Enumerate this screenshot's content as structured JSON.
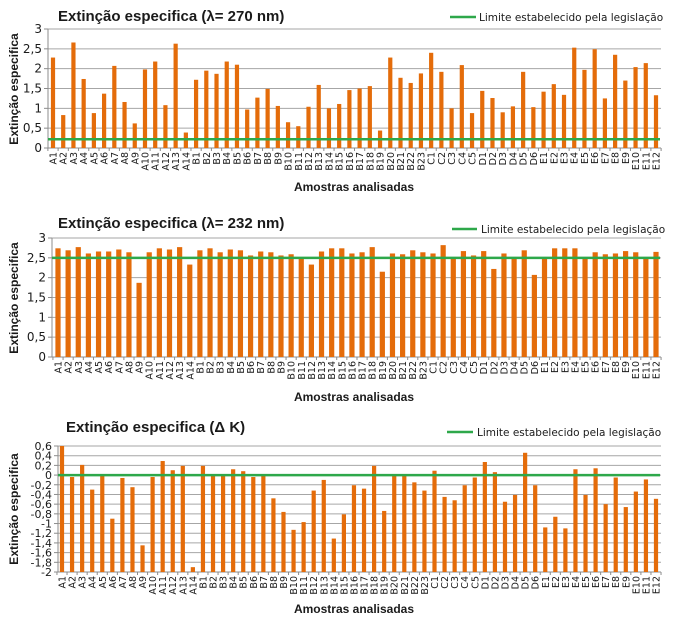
{
  "colors": {
    "bar": "#E46C0A",
    "limit_line": "#2EA84A",
    "grid": "#A6A6A6",
    "axis": "#8C8C8C"
  },
  "chart_data": [
    {
      "type": "bar",
      "title": "Extinção especifica  (λ= 270 nm)",
      "xlabel": "Amostras analisadas",
      "ylabel": "Extinção especifica",
      "ylim": [
        0,
        3
      ],
      "yticks": [
        0,
        0.5,
        1,
        1.5,
        2,
        2.5,
        3
      ],
      "ytick_labels": [
        "0",
        "0,5",
        "1",
        "1,5",
        "2",
        "2,5",
        "3"
      ],
      "grid": true,
      "legend": {
        "label": "Limite estabelecido pela legislação",
        "placement": "top-right"
      },
      "limit": 0.22,
      "categories": [
        "A1",
        "A2",
        "A3",
        "A4",
        "A5",
        "A6",
        "A7",
        "A8",
        "A9",
        "A10",
        "A11",
        "A12",
        "A13",
        "A14",
        "B1",
        "B2",
        "B3",
        "B4",
        "B5",
        "B6",
        "B7",
        "B8",
        "B9",
        "B10",
        "B11",
        "B12",
        "B13",
        "B14",
        "B15",
        "B16",
        "B17",
        "B18",
        "B19",
        "B20",
        "B21",
        "B22",
        "B23",
        "C1",
        "C2",
        "C3",
        "C4",
        "C5",
        "D1",
        "D2",
        "D3",
        "D4",
        "D5",
        "D6",
        "E1",
        "E2",
        "E3",
        "E4",
        "E5",
        "E6",
        "E7",
        "E8",
        "E9",
        "E10",
        "E11",
        "E12"
      ],
      "series": [
        {
          "name": "Extinção especifica 270 nm",
          "values": [
            2.28,
            0.83,
            2.66,
            1.74,
            0.88,
            1.37,
            2.07,
            1.16,
            0.62,
            1.98,
            2.18,
            1.08,
            2.63,
            0.39,
            1.72,
            1.95,
            1.87,
            2.18,
            2.1,
            0.97,
            1.27,
            1.49,
            1.06,
            0.65,
            0.55,
            1.04,
            1.59,
            1.0,
            1.11,
            1.46,
            1.5,
            1.56,
            0.44,
            2.28,
            1.77,
            1.64,
            1.88,
            2.4,
            1.92,
            1.0,
            2.09,
            0.88,
            1.44,
            1.26,
            0.9,
            1.05,
            1.92,
            1.03,
            1.42,
            1.61,
            1.34,
            2.53,
            1.97,
            2.49,
            1.25,
            2.35,
            1.7,
            2.04,
            2.14,
            1.33
          ]
        }
      ]
    },
    {
      "type": "bar",
      "title": "Extinção especifica  (λ= 232 nm)",
      "xlabel": "Amostras analisadas",
      "ylabel": "Extinção especifica",
      "ylim": [
        0,
        3
      ],
      "yticks": [
        0,
        0.5,
        1,
        1.5,
        2,
        2.5,
        3
      ],
      "ytick_labels": [
        "0",
        "0,5",
        "1",
        "1,5",
        "2",
        "2,5",
        "3"
      ],
      "grid": true,
      "legend": {
        "label": "Limite estabelecido pela legislação",
        "placement": "top-right"
      },
      "limit": 2.5,
      "categories": [
        "A1",
        "A2",
        "A3",
        "A4",
        "A5",
        "A6",
        "A7",
        "A8",
        "A9",
        "A10",
        "A11",
        "A12",
        "A13",
        "A14",
        "B1",
        "B2",
        "B3",
        "B4",
        "B5",
        "B6",
        "B7",
        "B8",
        "B9",
        "B10",
        "B11",
        "B12",
        "B13",
        "B14",
        "B15",
        "B16",
        "B17",
        "B18",
        "B19",
        "B20",
        "B21",
        "B22",
        "B23",
        "C1",
        "C2",
        "C3",
        "C4",
        "C5",
        "D1",
        "D2",
        "D3",
        "D4",
        "D5",
        "D6",
        "E1",
        "E2",
        "E3",
        "E4",
        "E5",
        "E6",
        "E7",
        "E8",
        "E9",
        "E10",
        "E11",
        "E12"
      ],
      "series": [
        {
          "name": "Extinção especifica 232 nm",
          "values": [
            2.74,
            2.69,
            2.77,
            2.61,
            2.66,
            2.66,
            2.71,
            2.64,
            1.87,
            2.64,
            2.74,
            2.71,
            2.77,
            2.33,
            2.69,
            2.74,
            2.64,
            2.71,
            2.69,
            2.56,
            2.66,
            2.64,
            2.56,
            2.59,
            2.51,
            2.33,
            2.66,
            2.74,
            2.74,
            2.61,
            2.64,
            2.77,
            2.15,
            2.61,
            2.59,
            2.69,
            2.64,
            2.61,
            2.82,
            2.51,
            2.67,
            2.56,
            2.67,
            2.22,
            2.61,
            2.51,
            2.69,
            2.07,
            2.51,
            2.74,
            2.74,
            2.74,
            2.51,
            2.64,
            2.59,
            2.61,
            2.67,
            2.64,
            2.51,
            2.65
          ]
        }
      ]
    },
    {
      "type": "bar",
      "title": "Extinção especifica  (Δ K)",
      "xlabel": "Amostras analisadas",
      "ylabel": "Extinção especifica",
      "ylim": [
        -2,
        0.6
      ],
      "yticks": [
        -2,
        -1.8,
        -1.6,
        -1.4,
        -1.2,
        -1,
        -0.8,
        -0.6,
        -0.4,
        -0.2,
        0,
        0.2,
        0.4,
        0.6
      ],
      "ytick_labels": [
        "-2",
        "-1,8",
        "-1,6",
        "-1,4",
        "-1,2",
        "-1",
        "-0,8",
        "-0,6",
        "-0,4",
        "-0,2",
        "0",
        "0,2",
        "0,4",
        "0,6"
      ],
      "grid": true,
      "bar_base": -2,
      "legend": {
        "label": "Limite estabelecido pela legislação",
        "placement": "top-right"
      },
      "limit": 0.0,
      "categories": [
        "A1",
        "A2",
        "A3",
        "A4",
        "A5",
        "A6",
        "A7",
        "A8",
        "A9",
        "A10",
        "A11",
        "A12",
        "A13",
        "A14",
        "B1",
        "B2",
        "B3",
        "B4",
        "B5",
        "B6",
        "B7",
        "B8",
        "B9",
        "B10",
        "B11",
        "B12",
        "B13",
        "B14",
        "B15",
        "B16",
        "B17",
        "B18",
        "B19",
        "B20",
        "B21",
        "B22",
        "B23",
        "C1",
        "C2",
        "C3",
        "C4",
        "C5",
        "D1",
        "D2",
        "D3",
        "D4",
        "D5",
        "D6",
        "E1",
        "E2",
        "E3",
        "E4",
        "E5",
        "E6",
        "E7",
        "E8",
        "E9",
        "E10",
        "E11",
        "E12"
      ],
      "series": [
        {
          "name": "Extinção especifica ΔK",
          "values": [
            0.6,
            -0.04,
            0.21,
            -0.3,
            0.0,
            -0.9,
            -0.06,
            -0.25,
            -1.45,
            -0.04,
            0.29,
            0.1,
            0.19,
            -1.9,
            0.19,
            0.0,
            0.0,
            0.12,
            0.08,
            -0.04,
            0.0,
            -0.48,
            -0.76,
            -1.13,
            -0.97,
            -0.32,
            -0.1,
            -1.31,
            -0.81,
            -0.21,
            -0.28,
            0.19,
            -0.74,
            -0.01,
            -0.01,
            -0.15,
            -0.32,
            0.09,
            -0.45,
            -0.52,
            -0.21,
            -0.05,
            0.27,
            0.06,
            -0.55,
            -0.41,
            0.46,
            -0.21,
            -1.08,
            -0.86,
            -1.1,
            0.12,
            -0.41,
            0.14,
            -0.6,
            -0.05,
            -0.66,
            -0.34,
            -0.09,
            -0.49
          ]
        }
      ]
    }
  ]
}
